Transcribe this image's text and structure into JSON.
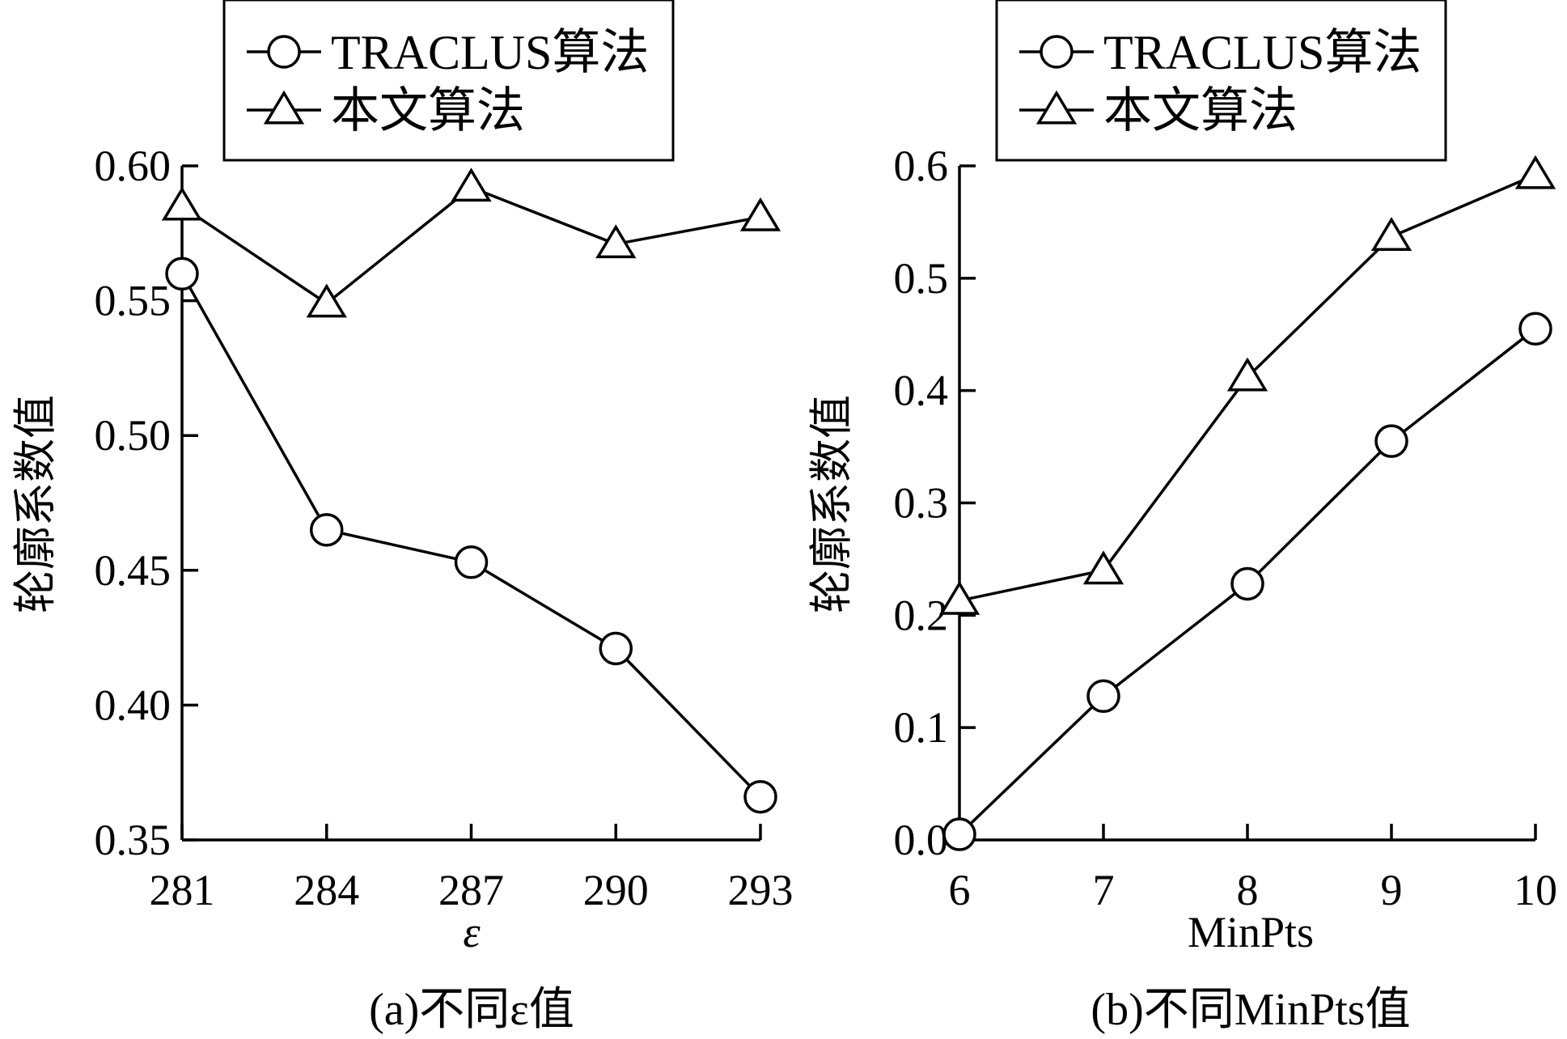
{
  "chart_data": [
    {
      "type": "line",
      "x": [
        281,
        284,
        287,
        290,
        293
      ],
      "x_tick_labels": [
        "281",
        "284",
        "287",
        "290",
        "293"
      ],
      "xlabel": "ε",
      "ylabel": "轮廓系数值",
      "ylim": [
        0.35,
        0.6
      ],
      "y_ticks": [
        0.35,
        0.4,
        0.45,
        0.5,
        0.55,
        0.6
      ],
      "y_tick_labels": [
        "0.35",
        "0.40",
        "0.45",
        "0.50",
        "0.55",
        "0.60"
      ],
      "series": [
        {
          "name": "TRACLUS算法",
          "marker": "circle",
          "values": [
            0.56,
            0.465,
            0.453,
            0.421,
            0.366
          ]
        },
        {
          "name": "本文算法",
          "marker": "triangle",
          "values": [
            0.585,
            0.549,
            0.592,
            0.571,
            0.581
          ]
        }
      ],
      "legend": "top-center",
      "grid": false,
      "caption": "(a)不同ε值"
    },
    {
      "type": "line",
      "x": [
        6,
        7,
        8,
        9,
        10
      ],
      "x_tick_labels": [
        "6",
        "7",
        "8",
        "9",
        "10"
      ],
      "xlabel": "MinPts",
      "ylabel": "轮廓系数值",
      "ylim": [
        0.0,
        0.6
      ],
      "y_ticks": [
        0.0,
        0.1,
        0.2,
        0.3,
        0.4,
        0.5,
        0.6
      ],
      "y_tick_labels": [
        "0.0",
        "0.1",
        "0.2",
        "0.3",
        "0.4",
        "0.5",
        "0.6"
      ],
      "series": [
        {
          "name": "TRACLUS算法",
          "marker": "circle",
          "values": [
            0.005,
            0.128,
            0.228,
            0.355,
            0.455
          ]
        },
        {
          "name": "本文算法",
          "marker": "triangle",
          "values": [
            0.213,
            0.24,
            0.412,
            0.537,
            0.592
          ]
        }
      ],
      "legend": "top-center",
      "grid": false,
      "caption": "(b)不同MinPts值"
    }
  ]
}
